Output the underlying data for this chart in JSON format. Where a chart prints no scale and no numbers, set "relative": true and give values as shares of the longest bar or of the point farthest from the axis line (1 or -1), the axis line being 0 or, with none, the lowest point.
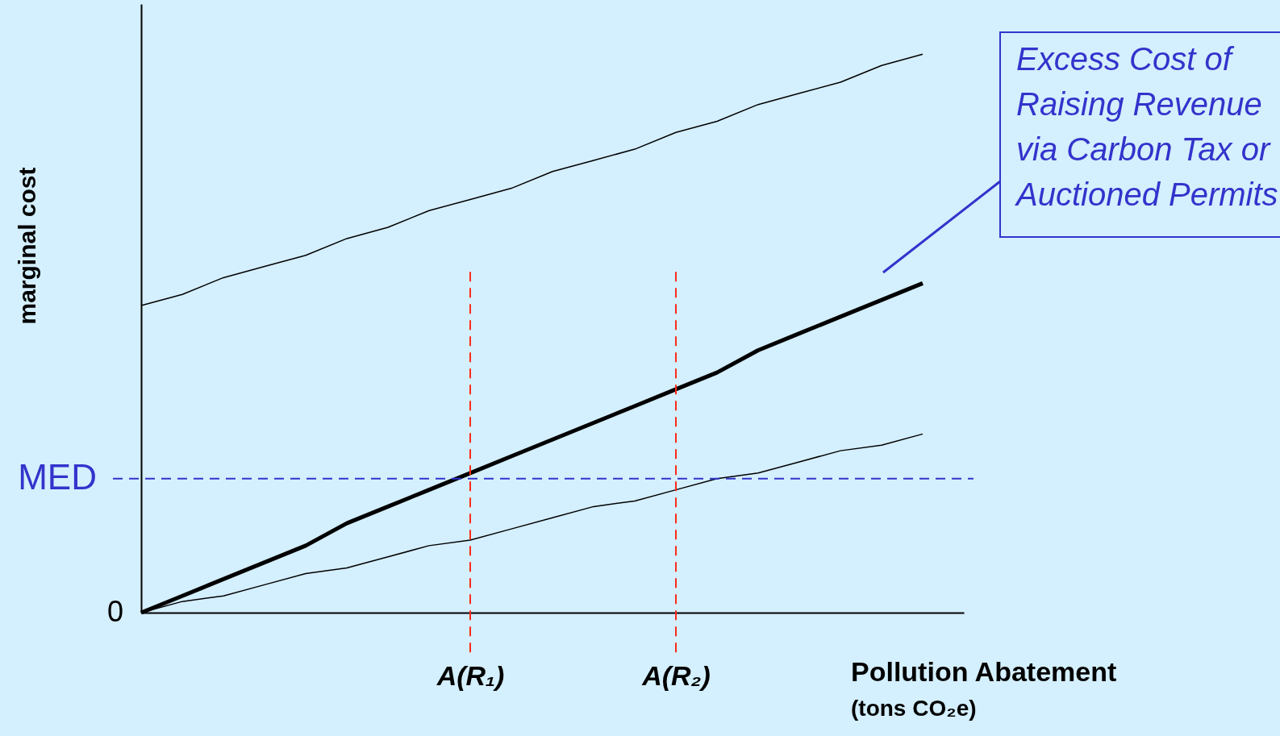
{
  "chart_data": {
    "type": "line",
    "relative": true,
    "tick_labels": "x",
    "marker": "none",
    "xlabel": "Pollution Abatement",
    "ylabel": "marginal cost",
    "categories": [
      null,
      null,
      null,
      null,
      null,
      null,
      null,
      null,
      "A(R₁)",
      null,
      null,
      null,
      null,
      "A(R₂)",
      null,
      null,
      null,
      null,
      null,
      null,
      null
    ],
    "series": [
      {
        "color": "#000000",
        "values": [
          0.55,
          0.57,
          0.6,
          0.62,
          0.64,
          0.67,
          0.69,
          0.72,
          0.74,
          0.76,
          0.79,
          0.81,
          0.83,
          0.86,
          0.88,
          0.91,
          0.93,
          0.95,
          0.98,
          1.0,
          null
        ]
      },
      {
        "color": "#000000",
        "values": [
          0,
          0.03,
          0.06,
          0.09,
          0.12,
          0.16,
          0.19,
          0.22,
          0.25,
          0.28,
          0.31,
          0.34,
          0.37,
          0.4,
          0.43,
          0.47,
          0.5,
          0.53,
          0.56,
          0.59,
          null
        ]
      },
      {
        "color": "#000000",
        "values": [
          0,
          0.02,
          0.03,
          0.05,
          0.07,
          0.08,
          0.1,
          0.12,
          0.13,
          0.15,
          0.17,
          0.19,
          0.2,
          0.22,
          0.24,
          0.25,
          0.27,
          0.29,
          0.3,
          0.32,
          null
        ]
      }
    ],
    "ref_lines": [
      {
        "axis": "x",
        "value": "A(R₁)",
        "color": "#ff2a1a",
        "line_style": "dashed"
      },
      {
        "axis": "x",
        "value": "A(R₂)",
        "color": "#ff2a1a",
        "line_style": "dashed"
      },
      {
        "axis": "y",
        "value": 0.24,
        "label": "MED",
        "color": "#3333cc",
        "line_style": "dashed"
      }
    ],
    "annotations": [
      "(tons CO₂e)",
      "0",
      "Excess Cost of Raising Revenue via Carbon Tax or Auctioned Permits"
    ]
  }
}
